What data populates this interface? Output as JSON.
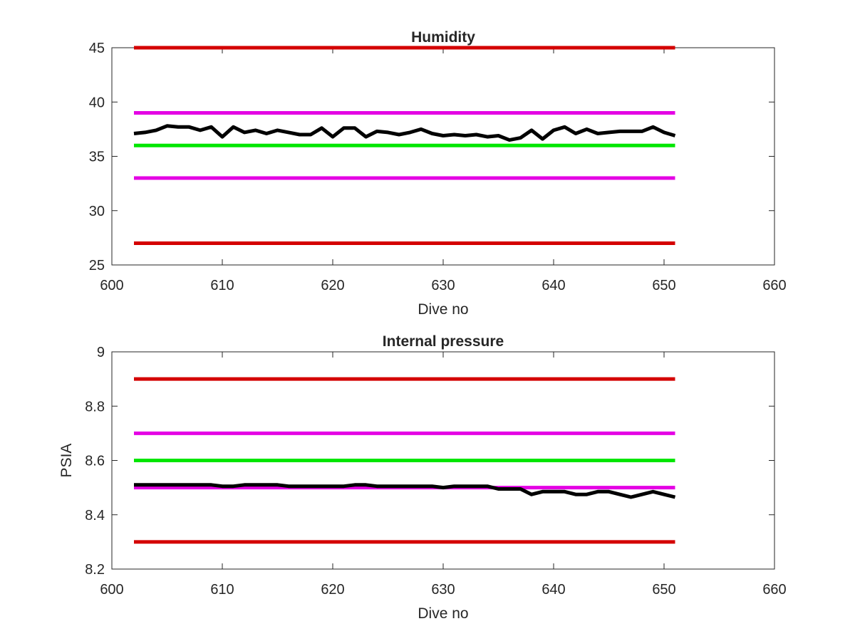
{
  "chart_data": [
    {
      "type": "line",
      "title": "Humidity",
      "xlabel": "Dive no",
      "ylabel": "",
      "xlim": [
        600,
        660
      ],
      "ylim": [
        25,
        45
      ],
      "xticks": [
        "600",
        "610",
        "620",
        "630",
        "640",
        "650",
        "660"
      ],
      "yticks": [
        "25",
        "30",
        "35",
        "40",
        "45"
      ],
      "grid": false,
      "reference_lines": [
        {
          "y": 45,
          "x": [
            602,
            651
          ],
          "color": "#d40000"
        },
        {
          "y": 39,
          "x": [
            602,
            651
          ],
          "color": "#e400e4"
        },
        {
          "y": 36,
          "x": [
            602,
            651
          ],
          "color": "#00e600"
        },
        {
          "y": 33,
          "x": [
            602,
            651
          ],
          "color": "#e400e4"
        },
        {
          "y": 27,
          "x": [
            602,
            651
          ],
          "color": "#d40000"
        }
      ],
      "series": [
        {
          "color": "#000000",
          "x": [
            602,
            603,
            604,
            605,
            606,
            607,
            608,
            609,
            610,
            611,
            612,
            613,
            614,
            615,
            616,
            617,
            618,
            619,
            620,
            621,
            622,
            623,
            624,
            625,
            626,
            627,
            628,
            629,
            630,
            631,
            632,
            633,
            634,
            635,
            636,
            637,
            638,
            639,
            640,
            641,
            642,
            643,
            644,
            645,
            646,
            647,
            648,
            649,
            650,
            651
          ],
          "values": [
            37.1,
            37.2,
            37.4,
            37.8,
            37.7,
            37.7,
            37.4,
            37.7,
            36.8,
            37.7,
            37.2,
            37.4,
            37.1,
            37.4,
            37.2,
            37.0,
            37.0,
            37.6,
            36.8,
            37.6,
            37.6,
            36.8,
            37.3,
            37.2,
            37.0,
            37.2,
            37.5,
            37.1,
            36.9,
            37.0,
            36.9,
            37.0,
            36.8,
            36.9,
            36.5,
            36.7,
            37.4,
            36.6,
            37.4,
            37.7,
            37.1,
            37.5,
            37.1,
            37.2,
            37.3,
            37.3,
            37.3,
            37.7,
            37.2,
            36.9
          ]
        }
      ]
    },
    {
      "type": "line",
      "title": "Internal pressure",
      "xlabel": "Dive no",
      "ylabel": "PSIA",
      "xlim": [
        600,
        660
      ],
      "ylim": [
        8.2,
        9.0
      ],
      "xticks": [
        "600",
        "610",
        "620",
        "630",
        "640",
        "650",
        "660"
      ],
      "yticks": [
        "8.2",
        "8.4",
        "8.6",
        "8.8",
        "9"
      ],
      "grid": false,
      "reference_lines": [
        {
          "y": 8.9,
          "x": [
            602,
            651
          ],
          "color": "#d40000"
        },
        {
          "y": 8.7,
          "x": [
            602,
            651
          ],
          "color": "#e400e4"
        },
        {
          "y": 8.6,
          "x": [
            602,
            651
          ],
          "color": "#00e600"
        },
        {
          "y": 8.5,
          "x": [
            602,
            651
          ],
          "color": "#e400e4"
        },
        {
          "y": 8.3,
          "x": [
            602,
            651
          ],
          "color": "#d40000"
        }
      ],
      "series": [
        {
          "color": "#000000",
          "x": [
            602,
            603,
            604,
            605,
            606,
            607,
            608,
            609,
            610,
            611,
            612,
            613,
            614,
            615,
            616,
            617,
            618,
            619,
            620,
            621,
            622,
            623,
            624,
            625,
            626,
            627,
            628,
            629,
            630,
            631,
            632,
            633,
            634,
            635,
            636,
            637,
            638,
            639,
            640,
            641,
            642,
            643,
            644,
            645,
            646,
            647,
            648,
            649,
            650,
            651
          ],
          "values": [
            8.51,
            8.51,
            8.51,
            8.51,
            8.51,
            8.51,
            8.51,
            8.51,
            8.505,
            8.505,
            8.51,
            8.51,
            8.51,
            8.51,
            8.505,
            8.505,
            8.505,
            8.505,
            8.505,
            8.505,
            8.51,
            8.51,
            8.505,
            8.505,
            8.505,
            8.505,
            8.505,
            8.505,
            8.5,
            8.505,
            8.505,
            8.505,
            8.505,
            8.495,
            8.495,
            8.495,
            8.475,
            8.485,
            8.485,
            8.485,
            8.475,
            8.475,
            8.485,
            8.485,
            8.475,
            8.465,
            8.475,
            8.485,
            8.475,
            8.465
          ]
        }
      ]
    }
  ]
}
